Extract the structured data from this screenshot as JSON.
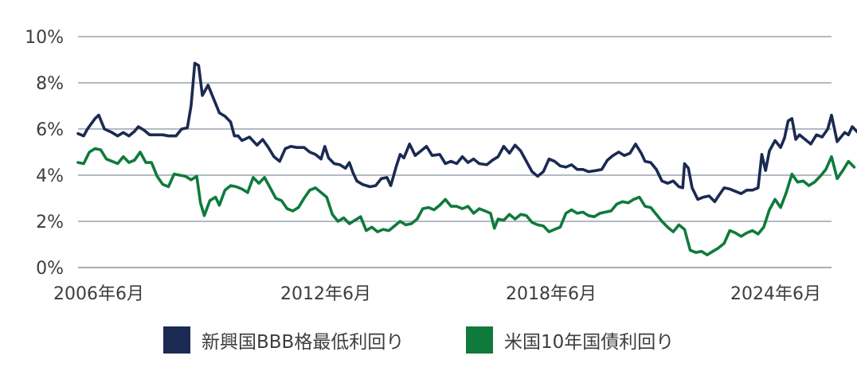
{
  "chart_data": {
    "type": "line",
    "title": "",
    "xlabel": "",
    "ylabel": "",
    "x_tick_labels": [
      "2006年6月",
      "2012年6月",
      "2018年6月",
      "2024年6月"
    ],
    "y_tick_labels": [
      "0%",
      "2%",
      "4%",
      "6%",
      "8%",
      "10%"
    ],
    "ylim": [
      0,
      10
    ],
    "xlim": [
      2006.0,
      2026.0
    ],
    "grid": "horizontal",
    "legend_position": "bottom",
    "series": [
      {
        "name": "新興国BBB格最低利回り",
        "color": "#1b2a52",
        "points": [
          [
            2006.0,
            5.8
          ],
          [
            2006.15,
            5.7
          ],
          [
            2006.25,
            6.0
          ],
          [
            2006.45,
            6.45
          ],
          [
            2006.55,
            6.6
          ],
          [
            2006.7,
            6.0
          ],
          [
            2006.9,
            5.85
          ],
          [
            2007.05,
            5.7
          ],
          [
            2007.2,
            5.85
          ],
          [
            2007.35,
            5.7
          ],
          [
            2007.5,
            5.9
          ],
          [
            2007.6,
            6.1
          ],
          [
            2007.75,
            5.95
          ],
          [
            2007.9,
            5.75
          ],
          [
            2008.05,
            5.75
          ],
          [
            2008.25,
            5.75
          ],
          [
            2008.4,
            5.7
          ],
          [
            2008.6,
            5.7
          ],
          [
            2008.75,
            6.0
          ],
          [
            2008.9,
            6.05
          ],
          [
            2009.0,
            7.0
          ],
          [
            2009.1,
            8.85
          ],
          [
            2009.2,
            8.75
          ],
          [
            2009.3,
            7.45
          ],
          [
            2009.45,
            7.9
          ],
          [
            2009.6,
            7.3
          ],
          [
            2009.75,
            6.7
          ],
          [
            2009.9,
            6.55
          ],
          [
            2010.05,
            6.3
          ],
          [
            2010.15,
            5.7
          ],
          [
            2010.25,
            5.7
          ],
          [
            2010.35,
            5.5
          ],
          [
            2010.55,
            5.65
          ],
          [
            2010.75,
            5.3
          ],
          [
            2010.9,
            5.55
          ],
          [
            2011.05,
            5.2
          ],
          [
            2011.2,
            4.8
          ],
          [
            2011.35,
            4.6
          ],
          [
            2011.5,
            5.15
          ],
          [
            2011.65,
            5.25
          ],
          [
            2011.8,
            5.2
          ],
          [
            2012.0,
            5.2
          ],
          [
            2012.15,
            5.0
          ],
          [
            2012.3,
            4.9
          ],
          [
            2012.45,
            4.7
          ],
          [
            2012.55,
            5.25
          ],
          [
            2012.65,
            4.75
          ],
          [
            2012.8,
            4.5
          ],
          [
            2012.95,
            4.45
          ],
          [
            2013.1,
            4.3
          ],
          [
            2013.2,
            4.55
          ],
          [
            2013.3,
            4.1
          ],
          [
            2013.4,
            3.75
          ],
          [
            2013.55,
            3.6
          ],
          [
            2013.75,
            3.5
          ],
          [
            2013.9,
            3.55
          ],
          [
            2014.05,
            3.85
          ],
          [
            2014.2,
            3.9
          ],
          [
            2014.3,
            3.55
          ],
          [
            2014.45,
            4.4
          ],
          [
            2014.55,
            4.9
          ],
          [
            2014.65,
            4.75
          ],
          [
            2014.8,
            5.35
          ],
          [
            2014.95,
            4.85
          ],
          [
            2015.1,
            5.05
          ],
          [
            2015.25,
            5.25
          ],
          [
            2015.4,
            4.85
          ],
          [
            2015.6,
            4.9
          ],
          [
            2015.75,
            4.5
          ],
          [
            2015.9,
            4.6
          ],
          [
            2016.05,
            4.5
          ],
          [
            2016.2,
            4.8
          ],
          [
            2016.35,
            4.55
          ],
          [
            2016.5,
            4.7
          ],
          [
            2016.65,
            4.5
          ],
          [
            2016.85,
            4.45
          ],
          [
            2017.0,
            4.65
          ],
          [
            2017.15,
            4.8
          ],
          [
            2017.3,
            5.25
          ],
          [
            2017.45,
            4.95
          ],
          [
            2017.6,
            5.3
          ],
          [
            2017.75,
            5.05
          ],
          [
            2017.9,
            4.6
          ],
          [
            2018.05,
            4.15
          ],
          [
            2018.2,
            3.95
          ],
          [
            2018.35,
            4.15
          ],
          [
            2018.5,
            4.7
          ],
          [
            2018.65,
            4.6
          ],
          [
            2018.8,
            4.4
          ],
          [
            2018.95,
            4.35
          ],
          [
            2019.1,
            4.45
          ],
          [
            2019.25,
            4.25
          ],
          [
            2019.4,
            4.25
          ],
          [
            2019.55,
            4.15
          ],
          [
            2019.75,
            4.2
          ],
          [
            2019.9,
            4.25
          ],
          [
            2020.05,
            4.65
          ],
          [
            2020.2,
            4.85
          ],
          [
            2020.35,
            5.0
          ],
          [
            2020.5,
            4.85
          ],
          [
            2020.65,
            4.95
          ],
          [
            2020.8,
            5.35
          ],
          [
            2020.95,
            4.95
          ],
          [
            2021.05,
            4.6
          ],
          [
            2021.2,
            4.55
          ],
          [
            2021.35,
            4.25
          ],
          [
            2021.5,
            3.75
          ],
          [
            2021.65,
            3.65
          ],
          [
            2021.8,
            3.75
          ],
          [
            2021.95,
            3.5
          ],
          [
            2022.05,
            3.45
          ],
          [
            2022.1,
            4.5
          ],
          [
            2022.2,
            4.3
          ],
          [
            2022.3,
            3.45
          ],
          [
            2022.45,
            2.95
          ],
          [
            2022.6,
            3.05
          ],
          [
            2022.75,
            3.1
          ],
          [
            2022.9,
            2.85
          ],
          [
            2023.0,
            3.1
          ],
          [
            2023.15,
            3.45
          ],
          [
            2023.3,
            3.4
          ],
          [
            2023.45,
            3.3
          ],
          [
            2023.6,
            3.2
          ],
          [
            2023.75,
            3.35
          ],
          [
            2023.9,
            3.35
          ],
          [
            2024.05,
            3.45
          ],
          [
            2024.15,
            4.9
          ],
          [
            2024.25,
            4.2
          ],
          [
            2024.35,
            5.05
          ],
          [
            2024.5,
            5.5
          ],
          [
            2024.65,
            5.2
          ],
          [
            2024.75,
            5.6
          ],
          [
            2024.85,
            6.35
          ],
          [
            2024.95,
            6.45
          ],
          [
            2025.05,
            5.55
          ],
          [
            2025.15,
            5.75
          ],
          [
            2025.3,
            5.55
          ],
          [
            2025.45,
            5.35
          ],
          [
            2025.6,
            5.75
          ],
          [
            2025.75,
            5.65
          ],
          [
            2025.9,
            6.0
          ],
          [
            2026.0,
            6.6
          ],
          [
            2026.15,
            5.45
          ],
          [
            2026.35,
            5.85
          ],
          [
            2026.45,
            5.75
          ],
          [
            2026.55,
            6.1
          ],
          [
            2026.7,
            5.85
          ]
        ]
      },
      {
        "name": "米国10年国債利回り",
        "color": "#0f7a3c",
        "points": [
          [
            2006.0,
            4.55
          ],
          [
            2006.15,
            4.5
          ],
          [
            2006.3,
            5.0
          ],
          [
            2006.45,
            5.15
          ],
          [
            2006.6,
            5.1
          ],
          [
            2006.75,
            4.7
          ],
          [
            2006.9,
            4.6
          ],
          [
            2007.05,
            4.5
          ],
          [
            2007.2,
            4.8
          ],
          [
            2007.35,
            4.55
          ],
          [
            2007.5,
            4.65
          ],
          [
            2007.65,
            5.0
          ],
          [
            2007.8,
            4.55
          ],
          [
            2007.95,
            4.55
          ],
          [
            2008.1,
            3.95
          ],
          [
            2008.25,
            3.6
          ],
          [
            2008.4,
            3.5
          ],
          [
            2008.55,
            4.05
          ],
          [
            2008.7,
            4.0
          ],
          [
            2008.85,
            3.95
          ],
          [
            2009.0,
            3.8
          ],
          [
            2009.15,
            3.95
          ],
          [
            2009.25,
            2.8
          ],
          [
            2009.35,
            2.25
          ],
          [
            2009.5,
            2.9
          ],
          [
            2009.65,
            3.05
          ],
          [
            2009.75,
            2.7
          ],
          [
            2009.9,
            3.35
          ],
          [
            2010.05,
            3.55
          ],
          [
            2010.2,
            3.5
          ],
          [
            2010.35,
            3.4
          ],
          [
            2010.5,
            3.25
          ],
          [
            2010.65,
            3.9
          ],
          [
            2010.8,
            3.65
          ],
          [
            2010.95,
            3.9
          ],
          [
            2011.1,
            3.45
          ],
          [
            2011.25,
            3.0
          ],
          [
            2011.4,
            2.9
          ],
          [
            2011.55,
            2.55
          ],
          [
            2011.7,
            2.45
          ],
          [
            2011.85,
            2.6
          ],
          [
            2012.0,
            3.0
          ],
          [
            2012.15,
            3.35
          ],
          [
            2012.3,
            3.45
          ],
          [
            2012.45,
            3.25
          ],
          [
            2012.6,
            3.05
          ],
          [
            2012.75,
            2.3
          ],
          [
            2012.9,
            2.0
          ],
          [
            2013.05,
            2.15
          ],
          [
            2013.2,
            1.9
          ],
          [
            2013.35,
            2.05
          ],
          [
            2013.5,
            2.2
          ],
          [
            2013.65,
            1.6
          ],
          [
            2013.8,
            1.75
          ],
          [
            2013.95,
            1.55
          ],
          [
            2014.1,
            1.65
          ],
          [
            2014.25,
            1.6
          ],
          [
            2014.4,
            1.8
          ],
          [
            2014.55,
            2.0
          ],
          [
            2014.7,
            1.85
          ],
          [
            2014.85,
            1.9
          ],
          [
            2015.0,
            2.1
          ],
          [
            2015.15,
            2.55
          ],
          [
            2015.3,
            2.6
          ],
          [
            2015.45,
            2.5
          ],
          [
            2015.6,
            2.7
          ],
          [
            2015.75,
            2.95
          ],
          [
            2015.9,
            2.65
          ],
          [
            2016.05,
            2.65
          ],
          [
            2016.2,
            2.55
          ],
          [
            2016.35,
            2.65
          ],
          [
            2016.5,
            2.35
          ],
          [
            2016.65,
            2.55
          ],
          [
            2016.8,
            2.45
          ],
          [
            2016.95,
            2.35
          ],
          [
            2017.05,
            1.7
          ],
          [
            2017.15,
            2.1
          ],
          [
            2017.3,
            2.05
          ],
          [
            2017.45,
            2.3
          ],
          [
            2017.6,
            2.1
          ],
          [
            2017.75,
            2.3
          ],
          [
            2017.9,
            2.25
          ],
          [
            2018.05,
            1.95
          ],
          [
            2018.2,
            1.85
          ],
          [
            2018.35,
            1.8
          ],
          [
            2018.5,
            1.55
          ],
          [
            2018.65,
            1.65
          ],
          [
            2018.8,
            1.75
          ],
          [
            2018.95,
            2.35
          ],
          [
            2019.1,
            2.5
          ],
          [
            2019.25,
            2.35
          ],
          [
            2019.4,
            2.4
          ],
          [
            2019.55,
            2.25
          ],
          [
            2019.7,
            2.2
          ],
          [
            2019.85,
            2.35
          ],
          [
            2020.0,
            2.4
          ],
          [
            2020.15,
            2.45
          ],
          [
            2020.3,
            2.75
          ],
          [
            2020.45,
            2.85
          ],
          [
            2020.6,
            2.8
          ],
          [
            2020.75,
            2.95
          ],
          [
            2020.9,
            3.05
          ],
          [
            2021.05,
            2.65
          ],
          [
            2021.2,
            2.6
          ],
          [
            2021.35,
            2.3
          ],
          [
            2021.5,
            2.0
          ],
          [
            2021.65,
            1.75
          ],
          [
            2021.8,
            1.55
          ],
          [
            2021.95,
            1.85
          ],
          [
            2022.1,
            1.65
          ],
          [
            2022.25,
            0.75
          ],
          [
            2022.4,
            0.65
          ],
          [
            2022.55,
            0.7
          ],
          [
            2022.7,
            0.55
          ],
          [
            2022.85,
            0.7
          ],
          [
            2023.0,
            0.85
          ],
          [
            2023.15,
            1.05
          ],
          [
            2023.3,
            1.6
          ],
          [
            2023.45,
            1.5
          ],
          [
            2023.6,
            1.35
          ],
          [
            2023.75,
            1.5
          ],
          [
            2023.9,
            1.6
          ],
          [
            2024.05,
            1.45
          ],
          [
            2024.2,
            1.75
          ],
          [
            2024.35,
            2.5
          ],
          [
            2024.5,
            2.95
          ],
          [
            2024.65,
            2.6
          ],
          [
            2024.8,
            3.25
          ],
          [
            2024.95,
            4.05
          ],
          [
            2025.1,
            3.7
          ],
          [
            2025.25,
            3.75
          ],
          [
            2025.4,
            3.55
          ],
          [
            2025.55,
            3.7
          ],
          [
            2025.7,
            3.95
          ],
          [
            2025.85,
            4.25
          ],
          [
            2026.0,
            4.8
          ],
          [
            2026.15,
            3.85
          ],
          [
            2026.3,
            4.2
          ],
          [
            2026.45,
            4.6
          ],
          [
            2026.6,
            4.35
          ]
        ]
      }
    ]
  }
}
